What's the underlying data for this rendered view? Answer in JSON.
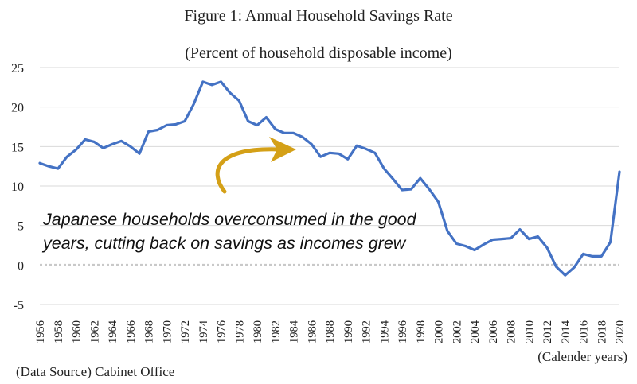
{
  "chart_data": {
    "type": "line",
    "title": "Figure 1: Annual Household Savings Rate",
    "subtitle": "(Percent of household disposable income)",
    "xlabel": "(Calender years)",
    "ylabel": "",
    "source": "(Data Source) Cabinet Office",
    "annotation": {
      "line1": "Japanese households overconsumed in the good",
      "line2": "years, cutting back on savings as incomes grew"
    },
    "ylim": [
      -5,
      25
    ],
    "yticks": [
      25,
      20,
      15,
      10,
      5,
      0,
      -5
    ],
    "xlim": [
      1956,
      2020
    ],
    "xticks": [
      1956,
      1958,
      1960,
      1962,
      1964,
      1966,
      1968,
      1970,
      1972,
      1974,
      1976,
      1978,
      1980,
      1982,
      1984,
      1986,
      1988,
      1990,
      1992,
      1994,
      1996,
      1998,
      2000,
      2002,
      2004,
      2006,
      2008,
      2010,
      2012,
      2014,
      2016,
      2018,
      2020
    ],
    "grid": true,
    "series": [
      {
        "color": "#4472c4",
        "x": [
          1956,
          1957,
          1958,
          1959,
          1960,
          1961,
          1962,
          1963,
          1964,
          1965,
          1966,
          1967,
          1968,
          1969,
          1970,
          1971,
          1972,
          1973,
          1974,
          1975,
          1976,
          1977,
          1978,
          1979,
          1980,
          1981,
          1982,
          1983,
          1984,
          1985,
          1986,
          1987,
          1988,
          1989,
          1990,
          1991,
          1992,
          1993,
          1994,
          1995,
          1996,
          1997,
          1998,
          1999,
          2000,
          2001,
          2002,
          2003,
          2004,
          2005,
          2006,
          2007,
          2008,
          2009,
          2010,
          2011,
          2012,
          2013,
          2014,
          2015,
          2016,
          2017,
          2018,
          2019,
          2020
        ],
        "values": [
          12.9,
          12.5,
          12.2,
          13.7,
          14.6,
          15.9,
          15.6,
          14.8,
          15.3,
          15.7,
          15.0,
          14.1,
          16.9,
          17.1,
          17.7,
          17.8,
          18.2,
          20.4,
          23.2,
          22.8,
          23.2,
          21.8,
          20.8,
          18.2,
          17.7,
          18.7,
          17.2,
          16.7,
          16.7,
          16.2,
          15.3,
          13.7,
          14.2,
          14.1,
          13.4,
          15.1,
          14.7,
          14.2,
          12.2,
          10.9,
          9.5,
          9.6,
          11.0,
          9.6,
          8.0,
          4.3,
          2.7,
          2.4,
          1.9,
          2.6,
          3.2,
          3.3,
          3.4,
          4.5,
          3.3,
          3.6,
          2.2,
          -0.2,
          -1.3,
          -0.3,
          1.4,
          1.1,
          1.1,
          2.9,
          11.8
        ]
      }
    ]
  },
  "arrow": {
    "color": "#d4a017"
  }
}
